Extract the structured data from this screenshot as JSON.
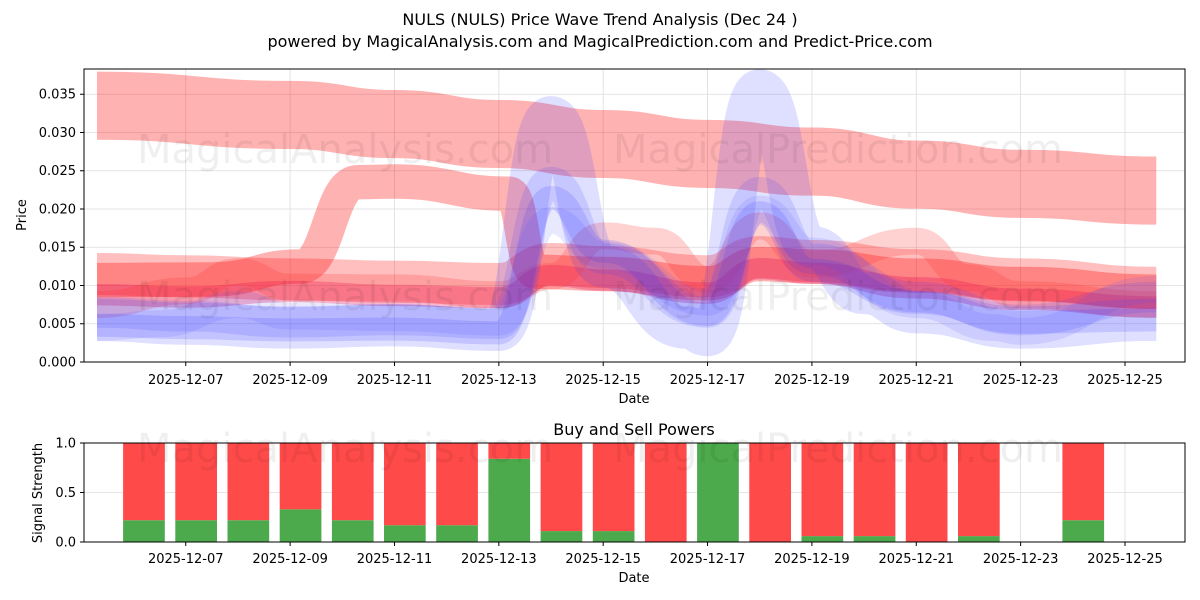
{
  "title_line1": "NULS (NULS) Price Wave Trend Analysis (Dec 24 )",
  "title_line2": "powered by MagicalAnalysis.com and MagicalPrediction.com and Predict-Price.com",
  "watermarks": [
    "MagicalAnalysis.com",
    "MagicalPrediction.com"
  ],
  "chart_data": [
    {
      "type": "area",
      "name": "price-wave-chart",
      "xlabel": "Date",
      "ylabel": "Price",
      "ylim": [
        0,
        0.0383
      ],
      "yticks": [
        "0.000",
        "0.005",
        "0.010",
        "0.015",
        "0.020",
        "0.025",
        "0.030",
        "0.035"
      ],
      "ytick_values": [
        0,
        0.005,
        0.01,
        0.015,
        0.02,
        0.025,
        0.03,
        0.035
      ],
      "xticks": [
        "2025-12-07",
        "2025-12-09",
        "2025-12-11",
        "2025-12-13",
        "2025-12-15",
        "2025-12-17",
        "2025-12-19",
        "2025-12-21",
        "2025-12-23",
        "2025-12-25"
      ],
      "xtick_days": [
        7,
        9,
        11,
        13,
        15,
        17,
        19,
        21,
        23,
        25
      ],
      "xlim_days": [
        5.05,
        26.15
      ],
      "grid": true,
      "series": [
        {
          "name": "upper-red-band",
          "color": "#ff0000",
          "opacity": 0.3,
          "width": 0.0089,
          "points": [
            [
              5.3,
              0.0335
            ],
            [
              9,
              0.0323
            ],
            [
              11,
              0.0311
            ],
            [
              13,
              0.0298
            ],
            [
              15,
              0.0285
            ],
            [
              17,
              0.0272
            ],
            [
              19,
              0.0262
            ],
            [
              21,
              0.0245
            ],
            [
              23,
              0.0233
            ],
            [
              25.6,
              0.0224
            ]
          ]
        },
        {
          "name": "mid-red-band",
          "color": "#ff0000",
          "opacity": 0.3,
          "width": 0.0045,
          "points": [
            [
              5.3,
              0.0107
            ],
            [
              7.5,
              0.0108
            ],
            [
              9.2,
              0.0125
            ],
            [
              10.3,
              0.0235
            ],
            [
              11,
              0.0236
            ],
            [
              13.2,
              0.022
            ],
            [
              13.7,
              0.0118
            ],
            [
              15,
              0.0115
            ],
            [
              17,
              0.0103
            ],
            [
              18,
              0.0128
            ],
            [
              19,
              0.0125
            ],
            [
              21,
              0.0113
            ],
            [
              23,
              0.0102
            ],
            [
              25.6,
              0.0092
            ]
          ]
        },
        {
          "name": "red-wave-1",
          "color": "#ff0000",
          "opacity": 0.25,
          "width": 0.0055,
          "points": [
            [
              5.3,
              0.0115
            ],
            [
              7,
              0.0112
            ],
            [
              9,
              0.0108
            ],
            [
              11,
              0.0105
            ],
            [
              13,
              0.0102
            ],
            [
              14,
              0.0128
            ],
            [
              15,
              0.0124
            ],
            [
              17,
              0.0112
            ],
            [
              18,
              0.0137
            ],
            [
              19,
              0.0132
            ],
            [
              21,
              0.012
            ],
            [
              23,
              0.0108
            ],
            [
              25.6,
              0.0097
            ]
          ]
        },
        {
          "name": "red-wave-2",
          "color": "#e0004f",
          "opacity": 0.28,
          "width": 0.0028,
          "points": [
            [
              5.3,
              0.0088
            ],
            [
              7,
              0.0085
            ],
            [
              9,
              0.0092
            ],
            [
              11,
              0.0087
            ],
            [
              13,
              0.0084
            ],
            [
              14,
              0.0113
            ],
            [
              15,
              0.0107
            ],
            [
              17,
              0.009
            ],
            [
              18,
              0.0122
            ],
            [
              19,
              0.0116
            ],
            [
              21,
              0.0097
            ],
            [
              23,
              0.0082
            ],
            [
              25.6,
              0.0072
            ]
          ]
        },
        {
          "name": "red-wave-3",
          "color": "#ff3030",
          "opacity": 0.22,
          "width": 0.0035,
          "points": [
            [
              5.3,
              0.0075
            ],
            [
              7,
              0.0093
            ],
            [
              8,
              0.0118
            ],
            [
              9,
              0.0098
            ],
            [
              11,
              0.0097
            ],
            [
              13,
              0.0088
            ],
            [
              14,
              0.0112
            ],
            [
              15,
              0.0165
            ],
            [
              16,
              0.0158
            ],
            [
              17,
              0.0108
            ],
            [
              18,
              0.0178
            ],
            [
              19,
              0.0128
            ],
            [
              21,
              0.0158
            ],
            [
              22,
              0.011
            ],
            [
              23,
              0.0088
            ],
            [
              25.6,
              0.0075
            ]
          ]
        },
        {
          "name": "blue-wave-1",
          "color": "#3a3aff",
          "opacity": 0.16,
          "width": 0.0055,
          "points": [
            [
              5.3,
              0.0055
            ],
            [
              7,
              0.005
            ],
            [
              9,
              0.0045
            ],
            [
              11,
              0.0048
            ],
            [
              13,
              0.0042
            ],
            [
              14,
              0.032
            ],
            [
              15,
              0.0125
            ],
            [
              16.6,
              0.0045
            ],
            [
              17,
              0.0035
            ],
            [
              18,
              0.0355
            ],
            [
              19,
              0.015
            ],
            [
              20,
              0.009
            ],
            [
              21,
              0.0065
            ],
            [
              23,
              0.0045
            ],
            [
              25.6,
              0.0055
            ]
          ]
        },
        {
          "name": "blue-wave-2",
          "color": "#3a3aff",
          "opacity": 0.14,
          "width": 0.004,
          "points": [
            [
              5.3,
              0.0065
            ],
            [
              7,
              0.006
            ],
            [
              9,
              0.0052
            ],
            [
              11,
              0.0055
            ],
            [
              13,
              0.005
            ],
            [
              14,
              0.0235
            ],
            [
              15,
              0.0135
            ],
            [
              17,
              0.0065
            ],
            [
              18,
              0.0222
            ],
            [
              19,
              0.0135
            ],
            [
              21,
              0.0085
            ],
            [
              23,
              0.0055
            ],
            [
              25.6,
              0.0085
            ]
          ]
        },
        {
          "name": "blue-wave-3",
          "color": "#5050ff",
          "opacity": 0.13,
          "width": 0.0035,
          "points": [
            [
              5.3,
              0.0045
            ],
            [
              6.5,
              0.005
            ],
            [
              8,
              0.0075
            ],
            [
              9,
              0.006
            ],
            [
              11,
              0.0058
            ],
            [
              13,
              0.0052
            ],
            [
              14,
              0.0185
            ],
            [
              15,
              0.014
            ],
            [
              17,
              0.0078
            ],
            [
              18,
              0.02
            ],
            [
              19,
              0.0145
            ],
            [
              21,
              0.0075
            ],
            [
              22.5,
              0.0045
            ],
            [
              23,
              0.004
            ],
            [
              25.6,
              0.0095
            ]
          ]
        },
        {
          "name": "blue-wave-4",
          "color": "#2a2aff",
          "opacity": 0.15,
          "width": 0.003,
          "points": [
            [
              5.3,
              0.0048
            ],
            [
              7,
              0.0045
            ],
            [
              9,
              0.0042
            ],
            [
              11,
              0.0043
            ],
            [
              13,
              0.0038
            ],
            [
              14,
              0.0215
            ],
            [
              15,
              0.0145
            ],
            [
              17,
              0.0062
            ],
            [
              18,
              0.0195
            ],
            [
              19,
              0.012
            ],
            [
              21,
              0.0078
            ],
            [
              23,
              0.0052
            ],
            [
              25.6,
              0.0055
            ]
          ]
        }
      ]
    },
    {
      "type": "bar",
      "name": "buy-sell-powers-chart",
      "title": "Buy and Sell Powers",
      "xlabel": "Date",
      "ylabel": "Signal Strength",
      "ylim": [
        0,
        1
      ],
      "yticks": [
        "0.0",
        "0.5",
        "1.0"
      ],
      "ytick_values": [
        0,
        0.5,
        1
      ],
      "xticks": [
        "2025-12-07",
        "2025-12-09",
        "2025-12-11",
        "2025-12-13",
        "2025-12-15",
        "2025-12-17",
        "2025-12-19",
        "2025-12-21",
        "2025-12-23",
        "2025-12-25"
      ],
      "xtick_days": [
        7,
        9,
        11,
        13,
        15,
        17,
        19,
        21,
        23,
        25
      ],
      "xlim_days": [
        5.05,
        26.15
      ],
      "bar_days": [
        6.2,
        7.2,
        8.2,
        9.2,
        10.2,
        11.2,
        12.2,
        13.2,
        14.2,
        15.2,
        16.2,
        17.2,
        18.2,
        19.2,
        20.2,
        21.2,
        22.2,
        24.2
      ],
      "series": [
        {
          "name": "Buy",
          "color": "#4caa4c",
          "values": [
            0.22,
            0.22,
            0.22,
            0.33,
            0.22,
            0.17,
            0.17,
            0.84,
            0.11,
            0.11,
            0.0,
            1.0,
            0.0,
            0.06,
            0.06,
            0.0,
            0.06,
            0.22
          ]
        },
        {
          "name": "Sell",
          "color": "#ff4a4a",
          "values": [
            0.78,
            0.78,
            0.78,
            0.67,
            0.78,
            0.83,
            0.83,
            0.16,
            0.89,
            0.89,
            1.0,
            0.0,
            1.0,
            0.94,
            0.94,
            1.0,
            0.94,
            0.78
          ]
        }
      ]
    }
  ]
}
